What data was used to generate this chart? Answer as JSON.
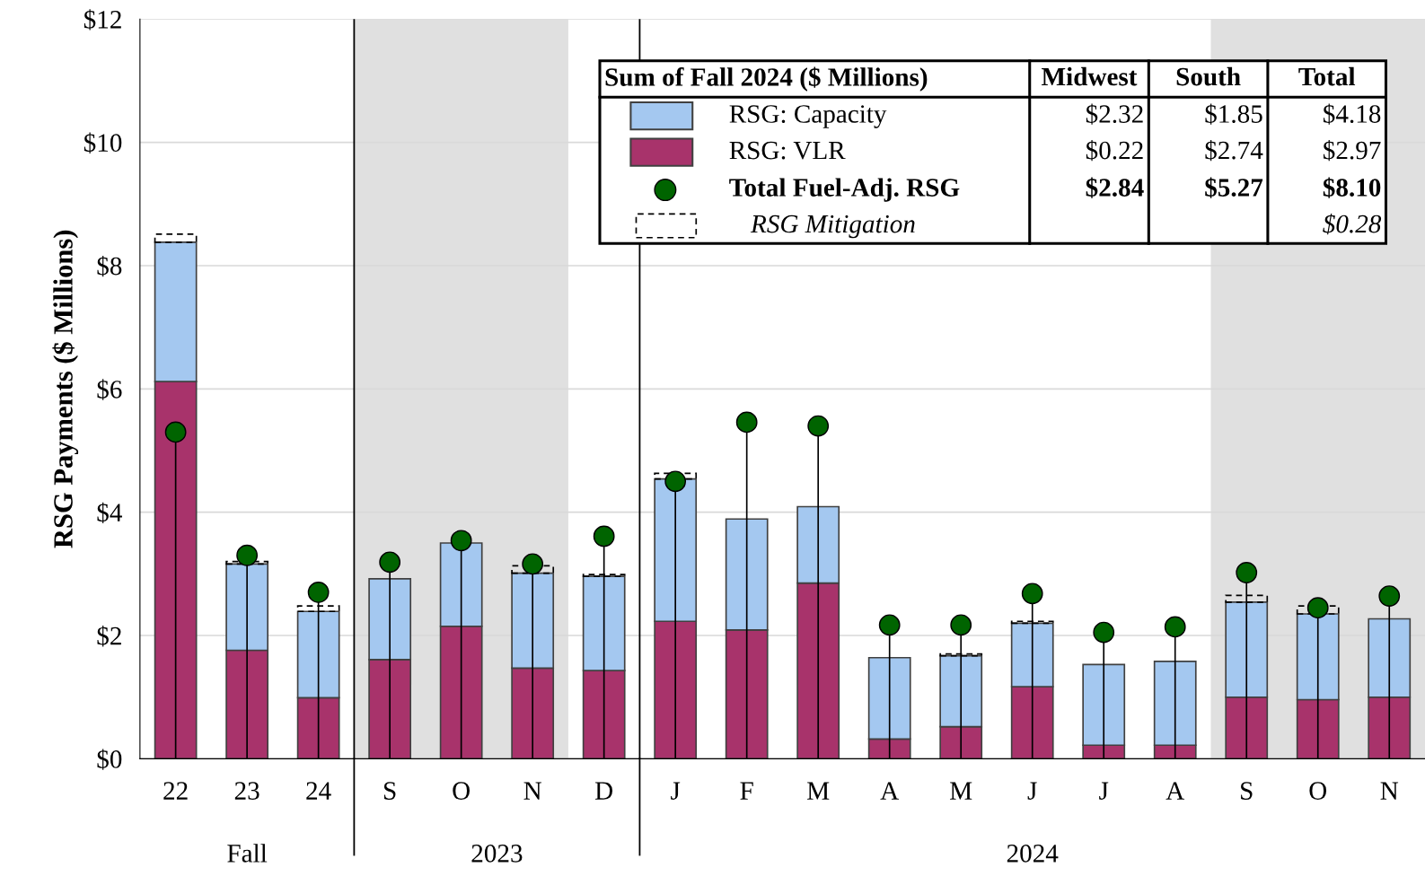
{
  "chart_data": {
    "type": "bar",
    "stacked": true,
    "ylabel": "RSG Payments ($ Millions)",
    "categories": [
      "22",
      "23",
      "24",
      "S",
      "O",
      "N",
      "D",
      "J",
      "F",
      "M",
      "A",
      "M",
      "J",
      "J",
      "A",
      "S",
      "O",
      "N"
    ],
    "series": [
      {
        "name": "RSG: VLR",
        "color": "#a8336b",
        "values": [
          6.12,
          1.76,
          0.99,
          1.61,
          2.15,
          1.47,
          1.43,
          2.23,
          2.09,
          2.85,
          0.32,
          0.52,
          1.17,
          0.22,
          0.22,
          1.0,
          0.96,
          1.0
        ]
      },
      {
        "name": "RSG: Capacity",
        "color": "#a4c8f0",
        "values": [
          2.26,
          1.4,
          1.4,
          1.31,
          1.35,
          1.54,
          1.53,
          2.31,
          1.8,
          1.24,
          1.32,
          1.15,
          1.03,
          1.31,
          1.36,
          1.54,
          1.39,
          1.27
        ]
      },
      {
        "name": "RSG Mitigation",
        "color": "#000000",
        "line_style": "dashed",
        "values": [
          0.13,
          0.04,
          0.09,
          null,
          null,
          0.12,
          0.03,
          0.09,
          null,
          null,
          null,
          0.03,
          0.03,
          null,
          null,
          0.11,
          0.13,
          null
        ]
      },
      {
        "name": "Total Fuel-Adj. RSG",
        "type": "lollipop",
        "color": "#006400",
        "marker": "circle",
        "values": [
          5.3,
          3.3,
          2.7,
          3.19,
          3.54,
          3.16,
          3.61,
          4.5,
          5.46,
          5.4,
          2.17,
          2.17,
          2.68,
          2.05,
          2.14,
          3.02,
          2.45,
          2.64
        ]
      }
    ],
    "ylim": [
      0,
      12
    ],
    "yticks": [
      {
        "value": 0,
        "label": "$0"
      },
      {
        "value": 2,
        "label": "$2"
      },
      {
        "value": 4,
        "label": "$4"
      },
      {
        "value": 6,
        "label": "$6"
      },
      {
        "value": 8,
        "label": "$8"
      },
      {
        "value": 10,
        "label": "$10"
      },
      {
        "value": 12,
        "label": "$12"
      }
    ],
    "grid": "y",
    "legend": "top right",
    "annotations": [
      "Fall",
      "2023",
      "2024",
      "Sum of Fall 2024 ($ Millions)",
      "Midwest",
      "South",
      "Total",
      "$2.32",
      "$1.85",
      "$4.18",
      "$0.22",
      "$2.74",
      "$2.97",
      "$2.84",
      "$5.27",
      "$8.10",
      "$0.28"
    ]
  }
}
